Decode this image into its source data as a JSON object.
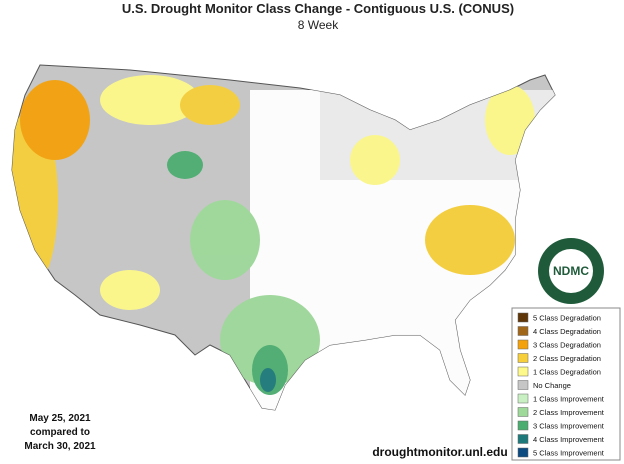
{
  "header": {
    "title": "U.S. Drought Monitor Class Change - Contiguous U.S. (CONUS)",
    "subtitle": "8 Week"
  },
  "legend": {
    "items": [
      {
        "label": "5 Class Degradation",
        "color": "#5e3608"
      },
      {
        "label": "4 Class Degradation",
        "color": "#a0661a"
      },
      {
        "label": "3 Class Degradation",
        "color": "#f4a20c"
      },
      {
        "label": "2 Class Degradation",
        "color": "#f7cf3a"
      },
      {
        "label": "1 Class Degradation",
        "color": "#fdf98a"
      },
      {
        "label": "No Change",
        "color": "#c6c6c6"
      },
      {
        "label": "1 Class Improvement",
        "color": "#c8f0c2"
      },
      {
        "label": "2 Class Improvement",
        "color": "#9ed99a"
      },
      {
        "label": "3 Class Improvement",
        "color": "#4cad70"
      },
      {
        "label": "4 Class Improvement",
        "color": "#1e7a7a"
      },
      {
        "label": "5 Class Improvement",
        "color": "#0c4a80"
      }
    ]
  },
  "dates": {
    "current": "May 25, 2021",
    "connector": "compared to",
    "previous": "March 30, 2021"
  },
  "logo": {
    "text": "NDMC"
  },
  "footer": {
    "url": "droughtmonitor.unl.edu"
  }
}
